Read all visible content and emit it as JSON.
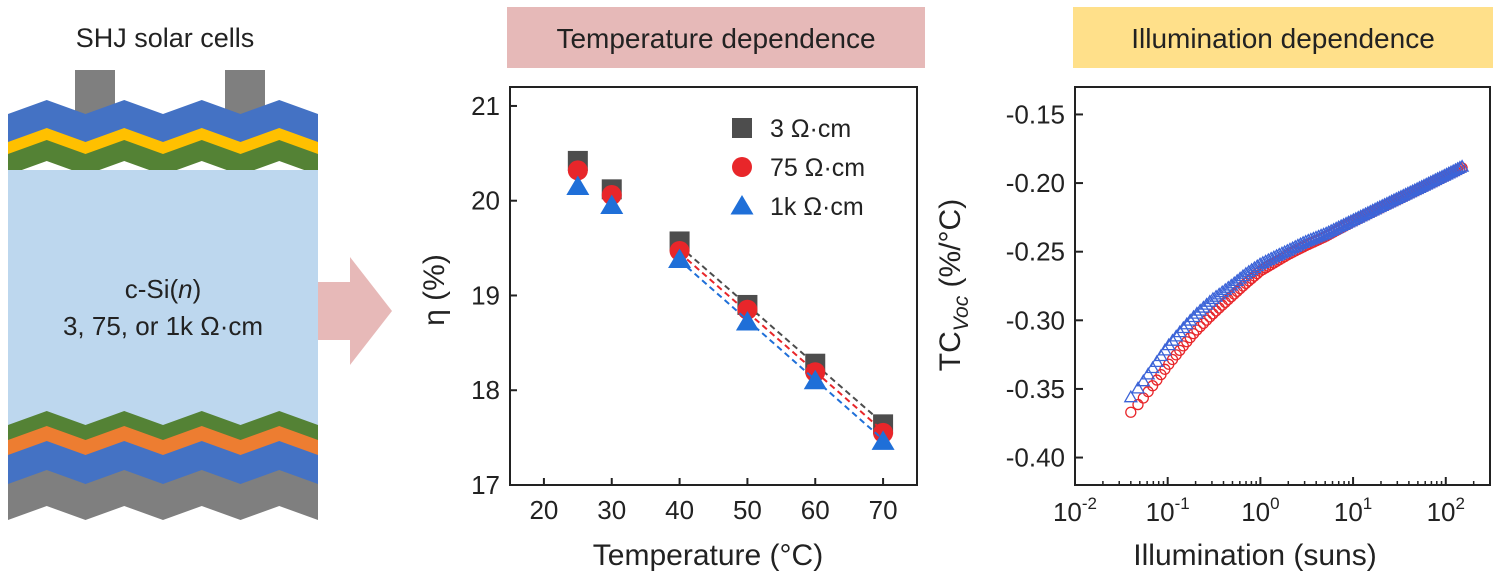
{
  "schematic": {
    "title": "SHJ solar cells",
    "label_material": "c-Si(",
    "label_material_italic": "n",
    "label_material_end": ")",
    "label_resistivity": "3, 75, or 1k Ω·cm",
    "resistivity_color": "#e8262a",
    "colors": {
      "contact": "#7f7f7f",
      "blue": "#4472c4",
      "yellow": "#ffc000",
      "green": "#548235",
      "bulk": "#bdd7ee",
      "orange": "#ed7d31",
      "gray": "#7f7f7f",
      "arrow": "#e7b9b8"
    }
  },
  "chart_data": [
    {
      "type": "scatter",
      "title": "Temperature dependence",
      "title_bg": "#e6b9b8",
      "xlabel": "Temperature (°C)",
      "ylabel": "η (%)",
      "xlim": [
        15,
        75
      ],
      "ylim": [
        17,
        21.2
      ],
      "xticks": [
        20,
        30,
        40,
        50,
        60,
        70
      ],
      "yticks": [
        17,
        18,
        19,
        20,
        21
      ],
      "legend": "top-right",
      "grid": false,
      "series": [
        {
          "name": "3 Ω·cm",
          "marker": "square",
          "color": "#4d4d4d",
          "x": [
            25,
            30,
            40,
            50,
            60,
            70
          ],
          "y": [
            20.42,
            20.12,
            19.57,
            18.9,
            18.28,
            17.64
          ],
          "fit": [
            [
              40,
              19.52
            ],
            [
              70,
              17.65
            ]
          ]
        },
        {
          "name": "75 Ω·cm",
          "marker": "circle",
          "color": "#e8262a",
          "x": [
            25,
            30,
            40,
            50,
            60,
            70
          ],
          "y": [
            20.32,
            20.06,
            19.47,
            18.85,
            18.19,
            17.55
          ],
          "fit": [
            [
              40,
              19.45
            ],
            [
              70,
              17.57
            ]
          ]
        },
        {
          "name": "1k Ω·cm",
          "marker": "triangle",
          "color": "#1f6fd8",
          "x": [
            25,
            30,
            40,
            50,
            60,
            70
          ],
          "y": [
            20.15,
            19.95,
            19.38,
            18.72,
            18.1,
            17.46
          ],
          "fit": [
            [
              40,
              19.37
            ],
            [
              70,
              17.48
            ]
          ]
        }
      ]
    },
    {
      "type": "scatter",
      "title": "Illumination dependence",
      "title_bg": "#ffe08a",
      "xlabel": "Illumination (suns)",
      "ylabel_main": "TC",
      "ylabel_sub": "Voc",
      "ylabel_end": " (%/°C)",
      "xscale": "log",
      "xlim": [
        0.01,
        300
      ],
      "ylim": [
        -0.42,
        -0.13
      ],
      "xticks": [
        {
          "base": "10",
          "exp": "-2",
          "value": 0.01
        },
        {
          "base": "10",
          "exp": "-1",
          "value": 0.1
        },
        {
          "base": "10",
          "exp": "0",
          "value": 1
        },
        {
          "base": "10",
          "exp": "1",
          "value": 10
        },
        {
          "base": "10",
          "exp": "2",
          "value": 100
        }
      ],
      "yticks": [
        "-0.40",
        "-0.35",
        "-0.30",
        "-0.25",
        "-0.20",
        "-0.15"
      ],
      "ytick_values": [
        -0.4,
        -0.35,
        -0.3,
        -0.25,
        -0.2,
        -0.15
      ],
      "grid": false,
      "series": [
        {
          "marker": "open-circle",
          "color": "#e8262a",
          "x": [
            0.04,
            0.05,
            0.07,
            0.1,
            0.15,
            0.2,
            0.3,
            0.5,
            0.7,
            1,
            1.5,
            2,
            3,
            5,
            10,
            20,
            50,
            100,
            150
          ],
          "y": [
            -0.367,
            -0.36,
            -0.347,
            -0.333,
            -0.318,
            -0.308,
            -0.296,
            -0.282,
            -0.273,
            -0.264,
            -0.257,
            -0.252,
            -0.246,
            -0.239,
            -0.228,
            -0.218,
            -0.205,
            -0.195,
            -0.189
          ]
        },
        {
          "marker": "open-triangle",
          "color": "#3c64d8",
          "x": [
            0.04,
            0.05,
            0.07,
            0.1,
            0.15,
            0.2,
            0.3,
            0.5,
            0.7,
            1,
            1.5,
            2,
            3,
            5,
            10,
            20,
            50,
            100,
            150
          ],
          "y": [
            -0.356,
            -0.348,
            -0.334,
            -0.319,
            -0.305,
            -0.296,
            -0.285,
            -0.274,
            -0.266,
            -0.259,
            -0.253,
            -0.249,
            -0.243,
            -0.237,
            -0.227,
            -0.217,
            -0.204,
            -0.194,
            -0.188
          ]
        }
      ]
    }
  ]
}
